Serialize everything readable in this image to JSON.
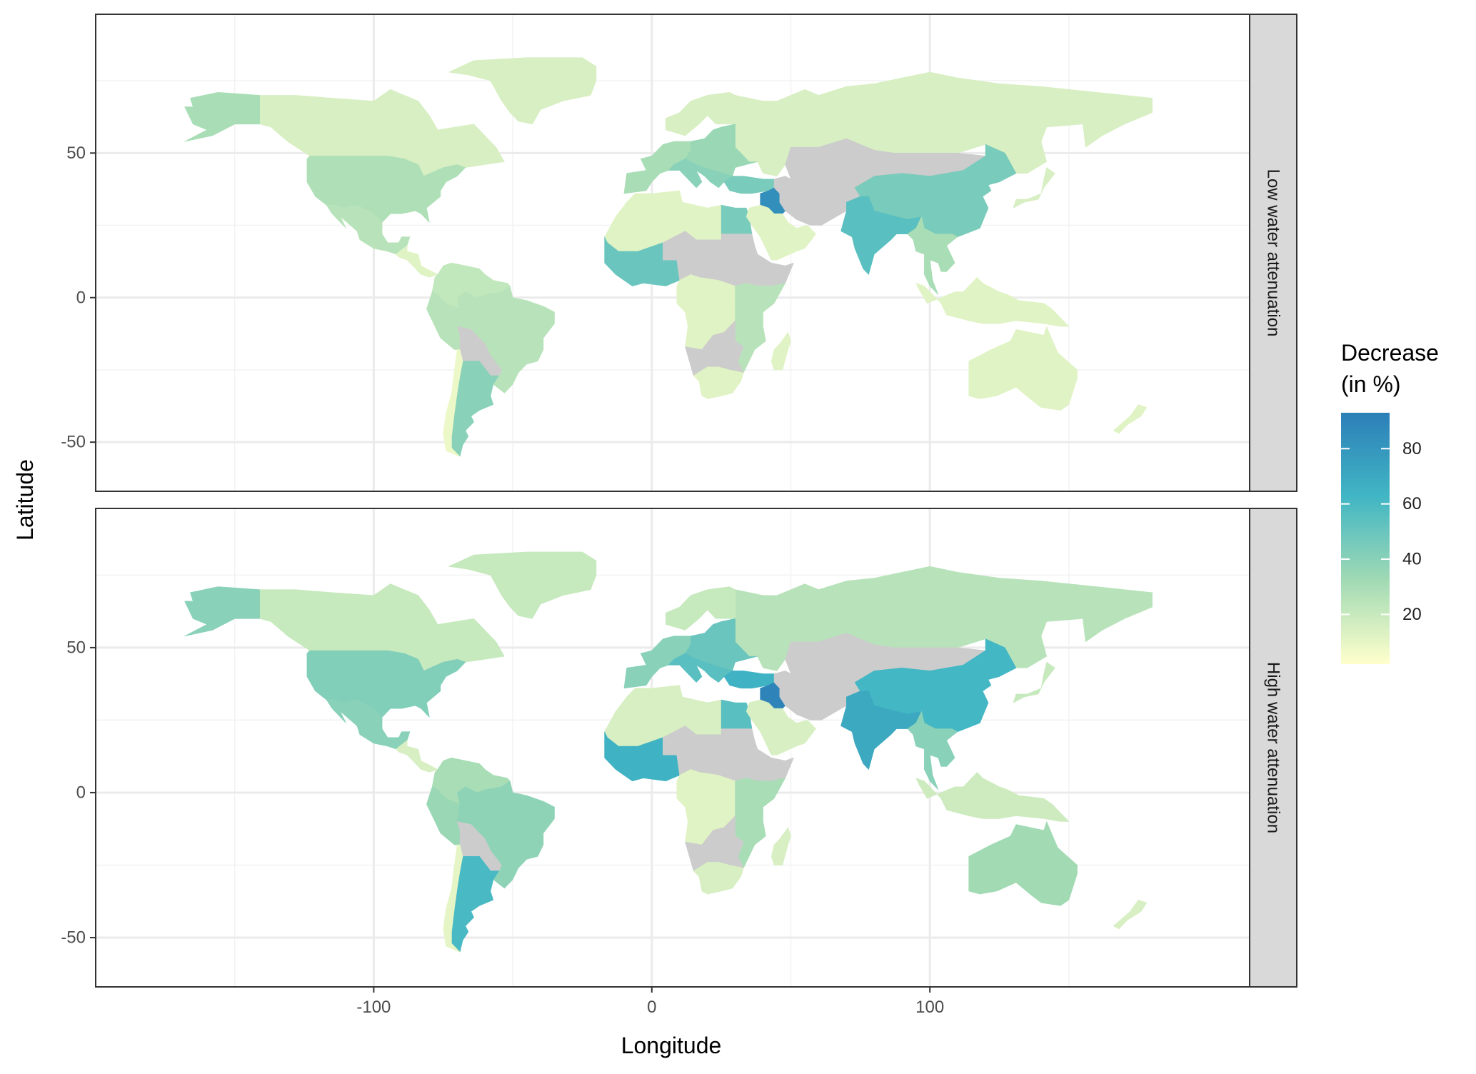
{
  "chart_data": {
    "type": "choropleth-map",
    "facets": [
      {
        "strip_label": "Low water attenuation",
        "regions": [
          {
            "name": "Canada",
            "value": 15
          },
          {
            "name": "Alaska",
            "value": 30
          },
          {
            "name": "Greenland",
            "value": 15
          },
          {
            "name": "USA",
            "value": 28
          },
          {
            "name": "Mexico",
            "value": 25
          },
          {
            "name": "Central America",
            "value": 12
          },
          {
            "name": "Colombia-Venezuela",
            "value": 22
          },
          {
            "name": "Peru",
            "value": 25
          },
          {
            "name": "Brazil",
            "value": 25
          },
          {
            "name": "Bolivia-Paraguay",
            "value": null
          },
          {
            "name": "Argentina",
            "value": 40
          },
          {
            "name": "Chile",
            "value": 8
          },
          {
            "name": "Russia",
            "value": 15
          },
          {
            "name": "Scandinavia",
            "value": 15
          },
          {
            "name": "Western Europe",
            "value": 30
          },
          {
            "name": "Eastern Europe",
            "value": 35
          },
          {
            "name": "Italy-Balkans",
            "value": 40
          },
          {
            "name": "Turkey",
            "value": 45
          },
          {
            "name": "Iraq",
            "value": 85
          },
          {
            "name": "Iran-Caspian",
            "value": null
          },
          {
            "name": "Central Asia",
            "value": null
          },
          {
            "name": "China",
            "value": 45
          },
          {
            "name": "Japan",
            "value": 15
          },
          {
            "name": "India",
            "value": 55
          },
          {
            "name": "Southeast Asia",
            "value": 30
          },
          {
            "name": "Indonesia",
            "value": 12
          },
          {
            "name": "Australia",
            "value": 12
          },
          {
            "name": "New Zealand",
            "value": 12
          },
          {
            "name": "North Africa",
            "value": 12
          },
          {
            "name": "Egypt",
            "value": 45
          },
          {
            "name": "Arabian Peninsula",
            "value": 12
          },
          {
            "name": "West Africa",
            "value": 50
          },
          {
            "name": "Sahel",
            "value": null
          },
          {
            "name": "Central Africa",
            "value": 12
          },
          {
            "name": "East Africa",
            "value": 25
          },
          {
            "name": "Southern Africa",
            "value": null
          },
          {
            "name": "South Africa",
            "value": 12
          },
          {
            "name": "Madagascar",
            "value": 12
          }
        ]
      },
      {
        "strip_label": "High water attenuation",
        "regions": [
          {
            "name": "Canada",
            "value": 20
          },
          {
            "name": "Alaska",
            "value": 40
          },
          {
            "name": "Greenland",
            "value": 20
          },
          {
            "name": "USA",
            "value": 42
          },
          {
            "name": "Mexico",
            "value": 40
          },
          {
            "name": "Central America",
            "value": 15
          },
          {
            "name": "Colombia-Venezuela",
            "value": 30
          },
          {
            "name": "Peru",
            "value": 35
          },
          {
            "name": "Brazil",
            "value": 38
          },
          {
            "name": "Bolivia-Paraguay",
            "value": null
          },
          {
            "name": "Argentina",
            "value": 60
          },
          {
            "name": "Chile",
            "value": 10
          },
          {
            "name": "Russia",
            "value": 25
          },
          {
            "name": "Scandinavia",
            "value": 20
          },
          {
            "name": "Western Europe",
            "value": 40
          },
          {
            "name": "Eastern Europe",
            "value": 50
          },
          {
            "name": "Italy-Balkans",
            "value": 55
          },
          {
            "name": "Turkey",
            "value": 65
          },
          {
            "name": "Iraq",
            "value": 90
          },
          {
            "name": "Iran-Caspian",
            "value": null
          },
          {
            "name": "Central Asia",
            "value": null
          },
          {
            "name": "China",
            "value": 62
          },
          {
            "name": "Japan",
            "value": 20
          },
          {
            "name": "India",
            "value": 70
          },
          {
            "name": "Southeast Asia",
            "value": 40
          },
          {
            "name": "Indonesia",
            "value": 18
          },
          {
            "name": "Australia",
            "value": 32
          },
          {
            "name": "New Zealand",
            "value": 15
          },
          {
            "name": "North Africa",
            "value": 15
          },
          {
            "name": "Egypt",
            "value": 55
          },
          {
            "name": "Arabian Peninsula",
            "value": 15
          },
          {
            "name": "West Africa",
            "value": 65
          },
          {
            "name": "Sahel",
            "value": null
          },
          {
            "name": "Central Africa",
            "value": 12
          },
          {
            "name": "East Africa",
            "value": 30
          },
          {
            "name": "Southern Africa",
            "value": null
          },
          {
            "name": "South Africa",
            "value": 15
          },
          {
            "name": "Madagascar",
            "value": 15
          }
        ]
      }
    ],
    "xlabel": "Longitude",
    "ylabel": "Latitude",
    "xlim": [
      -200,
      215
    ],
    "ylim": [
      -67,
      98
    ],
    "x_ticks": [
      -100,
      0,
      100
    ],
    "x_tick_labels": [
      "-100",
      "0",
      "100"
    ],
    "y_ticks": [
      -50,
      0,
      50
    ],
    "y_tick_labels": [
      "-50",
      "0",
      "50"
    ],
    "grid": true,
    "legend": {
      "title_lines": [
        "Decrease",
        "(in %)"
      ],
      "ticks": [
        20,
        40,
        60,
        80
      ],
      "tick_labels": [
        "20",
        "40",
        "60",
        "80"
      ],
      "range": [
        2,
        93
      ],
      "colors": [
        "#ffffcc",
        "#a1dab4",
        "#41b6c4",
        "#2c7fb8"
      ],
      "na_color": "#cccccc",
      "position": "right"
    }
  }
}
